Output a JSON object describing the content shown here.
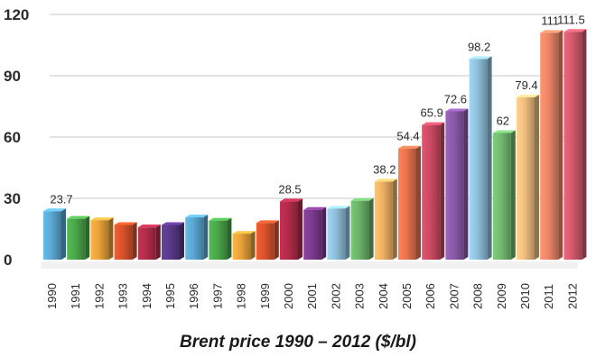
{
  "chart_data": {
    "type": "bar",
    "title": "Brent price 1990 – 2012 ($/bl)",
    "xlabel": "",
    "ylabel": "",
    "ylim": [
      0,
      120
    ],
    "yticks": [
      0,
      30,
      60,
      90,
      120
    ],
    "grid": true,
    "categories": [
      "1990",
      "1991",
      "1992",
      "1993",
      "1994",
      "1995",
      "1996",
      "1997",
      "1998",
      "1999",
      "2000",
      "2001",
      "2002",
      "2003",
      "2004",
      "2005",
      "2006",
      "2007",
      "2008",
      "2009",
      "2010",
      "2011",
      "2012"
    ],
    "values": [
      23.7,
      20.0,
      19.3,
      17.0,
      15.8,
      17.0,
      20.7,
      19.1,
      12.7,
      17.9,
      28.5,
      24.4,
      25.0,
      28.8,
      38.2,
      54.4,
      65.9,
      72.6,
      98.2,
      62,
      79.4,
      111,
      111.5
    ],
    "data_labels": {
      "0": "23.7",
      "10": "28.5",
      "14": "38.2",
      "15": "54.4",
      "16": "65.9",
      "17": "72.6",
      "18": "98.2",
      "19": "62",
      "20": "79.4",
      "21": "111",
      "22": "111.5"
    },
    "colors": [
      "#5aa7d2",
      "#4aa84a",
      "#e8a23a",
      "#d9532b",
      "#b32b4b",
      "#5a3a8c",
      "#5aa7d2",
      "#4aa84a",
      "#e8a23a",
      "#d9532b",
      "#b32b4b",
      "#7d3b8e",
      "#8ec0dc",
      "#6cb36a",
      "#eeb063",
      "#e9734f",
      "#cd4a63",
      "#8b5aa8",
      "#8ec0dc",
      "#72b96f",
      "#efbd7f",
      "#ed8566",
      "#d45a6e"
    ]
  }
}
